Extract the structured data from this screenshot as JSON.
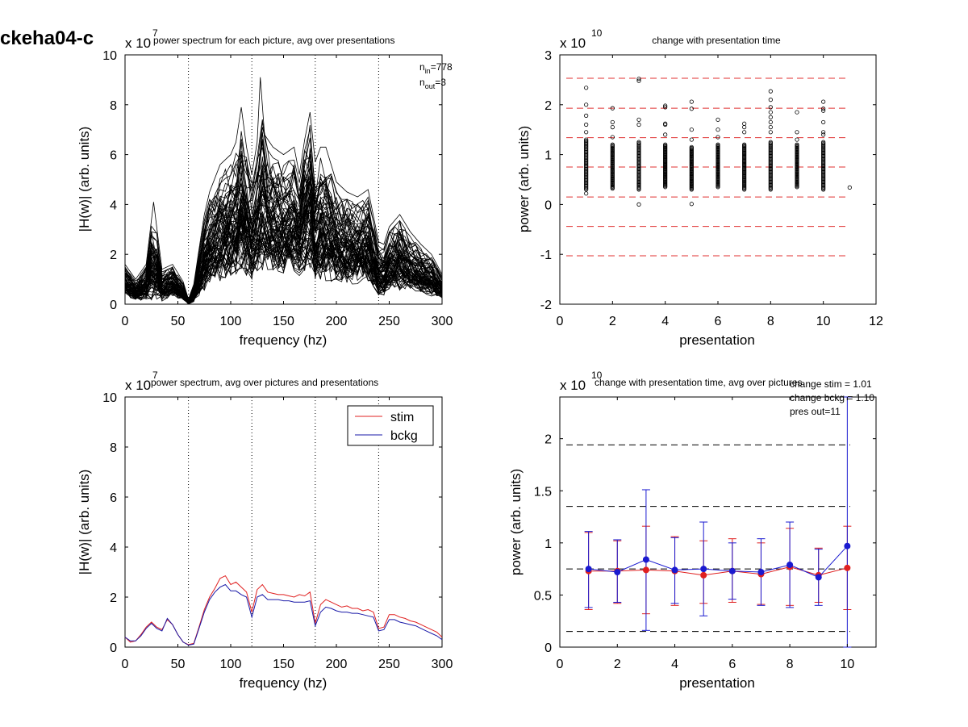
{
  "figure_id": "ckeha04-c",
  "chart_data": [
    {
      "type": "line",
      "title": "power spectrum for each picture, avg over presentations",
      "xlabel": "frequency (hz)",
      "ylabel": "|H(w)| (arb. units)",
      "exponent": "x 10",
      "exponent_power": "7",
      "xlim": [
        0,
        300
      ],
      "ylim": [
        0,
        10
      ],
      "xticks": [
        "0",
        "50",
        "100",
        "150",
        "200",
        "250",
        "300"
      ],
      "yticks": [
        "0",
        "2",
        "4",
        "6",
        "8",
        "10"
      ],
      "vlines": [
        60,
        120,
        180,
        240,
        300
      ],
      "series_color": "#000000",
      "envelope": {
        "x": [
          0,
          10,
          20,
          27,
          35,
          45,
          55,
          60,
          65,
          70,
          75,
          80,
          90,
          100,
          105,
          110,
          115,
          120,
          125,
          128,
          132,
          140,
          150,
          160,
          165,
          170,
          175,
          180,
          185,
          190,
          200,
          210,
          220,
          230,
          240,
          245,
          250,
          260,
          270,
          280,
          290,
          300
        ],
        "upper": [
          1.6,
          1.0,
          1.6,
          4.1,
          1.4,
          1.6,
          0.9,
          0.2,
          0.8,
          2.2,
          3.6,
          4.5,
          5.6,
          6.0,
          6.5,
          7.9,
          6.3,
          5.2,
          6.5,
          9.1,
          6.8,
          6.3,
          6.0,
          6.3,
          5.2,
          6.6,
          7.7,
          5.7,
          6.3,
          6.3,
          4.9,
          4.5,
          4.3,
          4.6,
          2.5,
          2.4,
          3.1,
          3.6,
          2.9,
          2.4,
          2.0,
          1.2
        ],
        "lower": [
          0.4,
          0.1,
          0.2,
          0.1,
          0.1,
          0.3,
          0.1,
          0.0,
          0.1,
          0.3,
          0.5,
          0.8,
          0.9,
          1.0,
          0.9,
          1.0,
          1.1,
          0.9,
          1.1,
          1.2,
          1.2,
          1.2,
          1.2,
          1.1,
          1.1,
          1.2,
          1.2,
          0.8,
          0.9,
          0.9,
          0.9,
          0.8,
          0.8,
          0.8,
          0.3,
          0.3,
          0.5,
          0.5,
          0.5,
          0.4,
          0.3,
          0.2
        ]
      },
      "annotations": [
        {
          "base": "n",
          "sub": "in",
          "value": "=778"
        },
        {
          "base": "n",
          "sub": "out",
          "value": "=3"
        }
      ]
    },
    {
      "type": "scatter",
      "title": "change with presentation time",
      "xlabel": "presentation",
      "ylabel": "power (arb. units)",
      "exponent": "x 10",
      "exponent_power": "10",
      "xlim": [
        0,
        12
      ],
      "ylim": [
        -2,
        3
      ],
      "xticks": [
        "0",
        "2",
        "4",
        "6",
        "8",
        "10",
        "12"
      ],
      "yticks": [
        "-2",
        "-1",
        "0",
        "1",
        "2",
        "3"
      ],
      "hlines": [
        2.53,
        1.93,
        1.34,
        0.75,
        0.15,
        -0.44,
        -1.03
      ],
      "hline_color": "#e03030",
      "marker_color": "#000000",
      "bulk": [
        {
          "x": 1,
          "low": 0.3,
          "high": 1.3
        },
        {
          "x": 2,
          "low": 0.32,
          "high": 1.2
        },
        {
          "x": 3,
          "low": 0.3,
          "high": 1.25
        },
        {
          "x": 4,
          "low": 0.35,
          "high": 1.2
        },
        {
          "x": 5,
          "low": 0.3,
          "high": 1.15
        },
        {
          "x": 6,
          "low": 0.35,
          "high": 1.2
        },
        {
          "x": 7,
          "low": 0.3,
          "high": 1.2
        },
        {
          "x": 8,
          "low": 0.3,
          "high": 1.25
        },
        {
          "x": 9,
          "low": 0.35,
          "high": 1.2
        },
        {
          "x": 10,
          "low": 0.3,
          "high": 1.25
        }
      ],
      "outliers": [
        [
          1,
          2.34
        ],
        [
          1,
          2.0
        ],
        [
          1,
          1.78
        ],
        [
          1,
          1.6
        ],
        [
          1,
          1.45
        ],
        [
          1,
          0.22
        ],
        [
          2,
          1.93
        ],
        [
          2,
          1.65
        ],
        [
          2,
          1.55
        ],
        [
          2,
          1.35
        ],
        [
          3,
          2.52
        ],
        [
          3,
          2.48
        ],
        [
          3,
          1.7
        ],
        [
          3,
          1.6
        ],
        [
          3,
          0.42
        ],
        [
          3,
          0.0
        ],
        [
          4,
          1.98
        ],
        [
          4,
          1.95
        ],
        [
          4,
          1.62
        ],
        [
          4,
          1.6
        ],
        [
          4,
          1.4
        ],
        [
          5,
          2.06
        ],
        [
          5,
          1.92
        ],
        [
          5,
          1.5
        ],
        [
          5,
          1.3
        ],
        [
          5,
          0.01
        ],
        [
          6,
          1.7
        ],
        [
          6,
          1.5
        ],
        [
          6,
          1.35
        ],
        [
          7,
          1.62
        ],
        [
          7,
          1.55
        ],
        [
          7,
          1.45
        ],
        [
          8,
          2.27
        ],
        [
          8,
          2.1
        ],
        [
          8,
          1.95
        ],
        [
          8,
          1.85
        ],
        [
          8,
          1.75
        ],
        [
          8,
          1.65
        ],
        [
          8,
          1.55
        ],
        [
          8,
          1.45
        ],
        [
          9,
          1.85
        ],
        [
          9,
          1.45
        ],
        [
          9,
          1.3
        ],
        [
          10,
          2.06
        ],
        [
          10,
          1.92
        ],
        [
          10,
          1.88
        ],
        [
          10,
          1.65
        ],
        [
          10,
          1.45
        ],
        [
          10,
          1.4
        ],
        [
          11,
          0.34
        ]
      ]
    },
    {
      "type": "line",
      "title": "power spectrum, avg over pictures and presentations",
      "xlabel": "frequency (hz)",
      "ylabel": "|H(w)| (arb. units)",
      "exponent": "x 10",
      "exponent_power": "7",
      "xlim": [
        0,
        300
      ],
      "ylim": [
        0,
        10
      ],
      "xticks": [
        "0",
        "50",
        "100",
        "150",
        "200",
        "250",
        "300"
      ],
      "yticks": [
        "0",
        "2",
        "4",
        "6",
        "8",
        "10"
      ],
      "vlines": [
        60,
        120,
        180,
        240,
        300
      ],
      "legend_position": "top-right",
      "x": [
        0,
        5,
        10,
        15,
        20,
        25,
        30,
        35,
        40,
        45,
        50,
        55,
        60,
        65,
        70,
        75,
        80,
        85,
        90,
        95,
        100,
        105,
        110,
        115,
        120,
        125,
        130,
        135,
        140,
        145,
        150,
        155,
        160,
        165,
        170,
        175,
        180,
        185,
        190,
        195,
        200,
        205,
        210,
        215,
        220,
        225,
        230,
        235,
        240,
        245,
        250,
        255,
        260,
        265,
        270,
        275,
        280,
        285,
        290,
        295,
        300
      ],
      "series": [
        {
          "name": "stim",
          "color": "#e02020",
          "values": [
            0.4,
            0.2,
            0.25,
            0.5,
            0.8,
            1.0,
            0.8,
            0.7,
            1.1,
            0.9,
            0.5,
            0.2,
            0.1,
            0.15,
            0.8,
            1.5,
            2.0,
            2.35,
            2.75,
            2.85,
            2.5,
            2.6,
            2.4,
            2.2,
            1.4,
            2.3,
            2.5,
            2.2,
            2.15,
            2.1,
            2.1,
            2.05,
            2.0,
            2.1,
            2.05,
            2.2,
            0.95,
            1.7,
            1.9,
            1.8,
            1.7,
            1.6,
            1.65,
            1.55,
            1.55,
            1.45,
            1.5,
            1.4,
            0.75,
            0.8,
            1.3,
            1.3,
            1.2,
            1.15,
            1.05,
            1.0,
            0.9,
            0.8,
            0.7,
            0.6,
            0.4
          ]
        },
        {
          "name": "bckg",
          "color": "#1a1aa8",
          "values": [
            0.4,
            0.25,
            0.25,
            0.45,
            0.75,
            0.95,
            0.75,
            0.65,
            1.15,
            0.9,
            0.5,
            0.2,
            0.08,
            0.12,
            0.75,
            1.4,
            1.9,
            2.2,
            2.4,
            2.5,
            2.25,
            2.25,
            2.1,
            2.0,
            1.2,
            2.0,
            2.1,
            1.9,
            1.9,
            1.9,
            1.85,
            1.85,
            1.8,
            1.8,
            1.8,
            1.85,
            0.85,
            1.4,
            1.6,
            1.55,
            1.45,
            1.4,
            1.4,
            1.35,
            1.35,
            1.3,
            1.25,
            1.2,
            0.65,
            0.7,
            1.1,
            1.1,
            1.0,
            0.95,
            0.9,
            0.85,
            0.75,
            0.65,
            0.55,
            0.45,
            0.3
          ]
        }
      ]
    },
    {
      "type": "line",
      "title": "change with presentation time, avg over pictures",
      "xlabel": "presentation",
      "ylabel": "power (arb. units)",
      "exponent": "x 10",
      "exponent_power": "10",
      "xlim": [
        0,
        11
      ],
      "ylim": [
        0,
        2.4
      ],
      "xticks": [
        "0",
        "2",
        "4",
        "6",
        "8",
        "10"
      ],
      "yticks": [
        "0",
        "0.5",
        "1",
        "1.5",
        "2"
      ],
      "hlines": [
        1.94,
        1.35,
        0.75,
        0.15
      ],
      "hline_color": "#000000",
      "annotations": [
        "change stim = 1.01",
        "change bckg = 1.10",
        "pres out=11"
      ],
      "x": [
        1,
        2,
        3,
        4,
        5,
        6,
        7,
        8,
        9,
        10
      ],
      "series": [
        {
          "name": "stim",
          "color": "#e02020",
          "values": [
            0.73,
            0.73,
            0.74,
            0.73,
            0.69,
            0.73,
            0.7,
            0.77,
            0.69,
            0.76
          ],
          "err_low": [
            0.36,
            0.42,
            0.32,
            0.4,
            0.42,
            0.43,
            0.41,
            0.4,
            0.43,
            0.36
          ],
          "err_high": [
            1.1,
            1.02,
            1.16,
            1.06,
            1.02,
            1.04,
            1.0,
            1.14,
            0.95,
            1.16
          ]
        },
        {
          "name": "bckg",
          "color": "#1a1ad0",
          "values": [
            0.75,
            0.72,
            0.84,
            0.74,
            0.75,
            0.73,
            0.72,
            0.79,
            0.67,
            0.97
          ],
          "err_low": [
            0.38,
            0.43,
            0.16,
            0.42,
            0.3,
            0.46,
            0.4,
            0.38,
            0.4,
            0.0
          ],
          "err_high": [
            1.11,
            1.03,
            1.51,
            1.05,
            1.2,
            1.0,
            1.04,
            1.2,
            0.94,
            2.4
          ]
        }
      ]
    }
  ]
}
